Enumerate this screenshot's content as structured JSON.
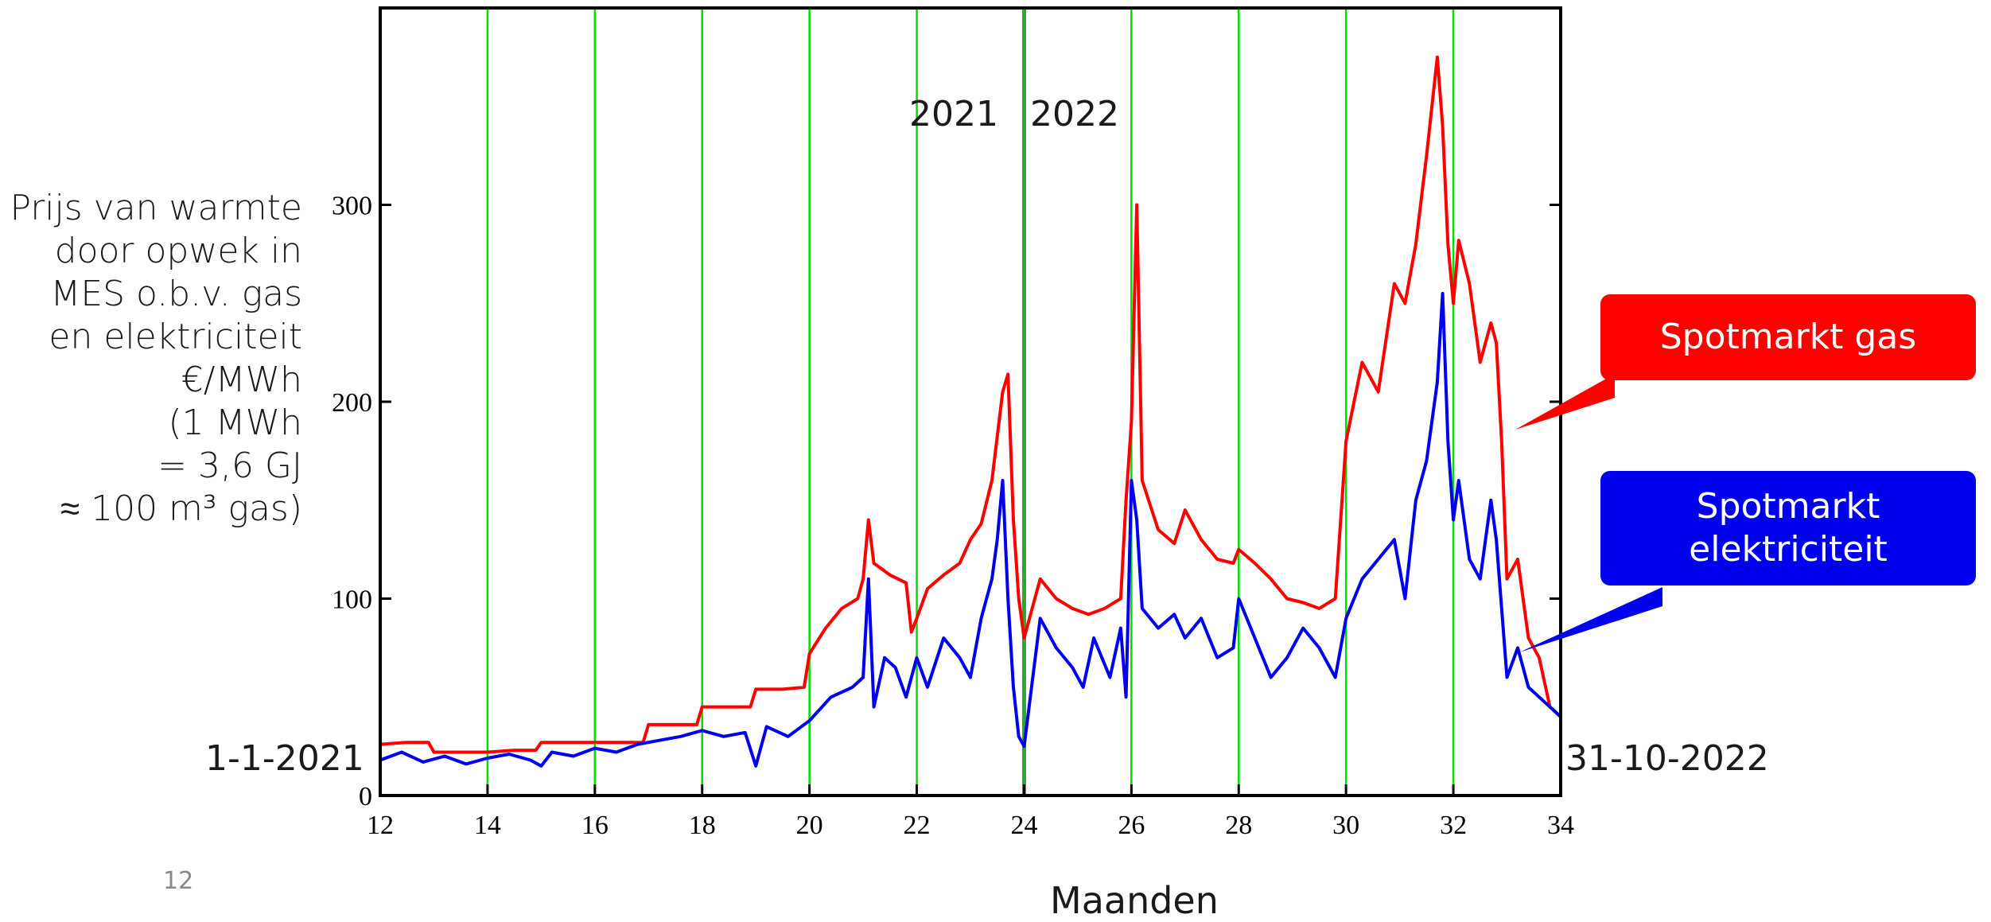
{
  "slide_number": "12",
  "colors": {
    "gas": "#ff0000",
    "elec": "#0000ee",
    "grid": "#00dd00",
    "year_divider": "#2fa72f",
    "callout_gas": "#ff0000",
    "callout_elec": "#0000ee"
  },
  "annotations": {
    "start_date": "1-1-2021",
    "end_date": "31-10-2022",
    "year_left": "2021",
    "year_right": "2022"
  },
  "callouts": {
    "gas": "Spotmarkt gas",
    "elec_line1": "Spotmarkt",
    "elec_line2": "elektriciteit"
  },
  "ylabel_lines": [
    "Prijs van warmte",
    "door opwek in",
    "MES o.b.v. gas",
    "en elektriciteit",
    "€/MWh",
    "(1 MWh",
    "= 3,6 GJ",
    "≈ 100 m³ gas)"
  ],
  "chart_data": {
    "type": "line",
    "xlabel": "Maanden",
    "ylabel": "Prijs van warmte door opwek in MES o.b.v. gas en elektriciteit €/MWh (1 MWh = 3,6 GJ ≈ 100 m³ gas)",
    "xlim": [
      12,
      34
    ],
    "ylim": [
      0,
      400
    ],
    "xticks": [
      12,
      14,
      16,
      18,
      20,
      22,
      24,
      26,
      28,
      30,
      32,
      34
    ],
    "yticks": [
      0,
      100,
      200,
      300
    ],
    "vertical_gridlines": [
      14,
      16,
      18,
      20,
      22,
      24,
      26,
      28,
      30,
      32
    ],
    "year_divider_x": 24,
    "legend": "callouts-right",
    "series": [
      {
        "name": "Spotmarkt gas",
        "color": "#ff0000",
        "x": [
          12,
          12.5,
          12.9,
          13.0,
          13.5,
          14.0,
          14.5,
          14.9,
          15.0,
          15.5,
          16.0,
          16.5,
          16.9,
          17.0,
          17.5,
          17.9,
          18.0,
          18.5,
          18.9,
          19.0,
          19.5,
          19.9,
          20.0,
          20.3,
          20.6,
          20.9,
          21.0,
          21.1,
          21.2,
          21.5,
          21.8,
          21.9,
          22.0,
          22.2,
          22.5,
          22.8,
          23.0,
          23.2,
          23.4,
          23.6,
          23.7,
          23.8,
          23.9,
          24.0,
          24.3,
          24.6,
          24.9,
          25.2,
          25.5,
          25.8,
          25.9,
          26.0,
          26.1,
          26.2,
          26.5,
          26.8,
          27.0,
          27.3,
          27.6,
          27.9,
          28.0,
          28.3,
          28.6,
          28.9,
          29.2,
          29.5,
          29.8,
          30.0,
          30.3,
          30.6,
          30.9,
          31.1,
          31.3,
          31.5,
          31.7,
          31.8,
          31.9,
          32.0,
          32.1,
          32.3,
          32.5,
          32.7,
          32.8,
          32.9,
          33.0,
          33.2,
          33.4,
          33.6,
          33.8,
          34.0
        ],
        "values": [
          26,
          27,
          27,
          22,
          22,
          22,
          23,
          23,
          27,
          27,
          27,
          27,
          27,
          36,
          36,
          36,
          45,
          45,
          45,
          54,
          54,
          55,
          72,
          85,
          95,
          100,
          110,
          140,
          118,
          112,
          108,
          83,
          90,
          105,
          112,
          118,
          130,
          138,
          160,
          205,
          214,
          140,
          100,
          80,
          110,
          100,
          95,
          92,
          95,
          100,
          150,
          190,
          300,
          160,
          135,
          128,
          145,
          130,
          120,
          118,
          125,
          118,
          110,
          100,
          98,
          95,
          100,
          180,
          220,
          205,
          260,
          250,
          280,
          325,
          375,
          340,
          280,
          250,
          282,
          260,
          220,
          240,
          230,
          180,
          110,
          120,
          80,
          70,
          45,
          40
        ]
      },
      {
        "name": "Spotmarkt elektriciteit",
        "color": "#0000ee",
        "x": [
          12,
          12.4,
          12.8,
          13.2,
          13.6,
          14.0,
          14.4,
          14.8,
          15.0,
          15.2,
          15.6,
          16.0,
          16.4,
          16.8,
          17.2,
          17.6,
          18.0,
          18.4,
          18.8,
          19.0,
          19.2,
          19.6,
          20.0,
          20.4,
          20.8,
          21.0,
          21.1,
          21.2,
          21.4,
          21.6,
          21.8,
          22.0,
          22.2,
          22.5,
          22.8,
          23.0,
          23.2,
          23.4,
          23.5,
          23.6,
          23.7,
          23.8,
          23.9,
          24.0,
          24.3,
          24.6,
          24.9,
          25.1,
          25.3,
          25.6,
          25.8,
          25.9,
          26.0,
          26.1,
          26.2,
          26.5,
          26.8,
          27.0,
          27.3,
          27.6,
          27.9,
          28.0,
          28.3,
          28.6,
          28.9,
          29.2,
          29.5,
          29.8,
          30.0,
          30.3,
          30.6,
          30.9,
          31.1,
          31.3,
          31.5,
          31.7,
          31.8,
          31.9,
          32.0,
          32.1,
          32.3,
          32.5,
          32.7,
          32.8,
          32.9,
          33.0,
          33.2,
          33.4,
          33.6,
          33.8,
          34.0
        ],
        "values": [
          18,
          22,
          17,
          20,
          16,
          19,
          21,
          18,
          15,
          22,
          20,
          24,
          22,
          26,
          28,
          30,
          33,
          30,
          32,
          15,
          35,
          30,
          38,
          50,
          55,
          60,
          110,
          45,
          70,
          65,
          50,
          70,
          55,
          80,
          70,
          60,
          90,
          110,
          130,
          160,
          100,
          55,
          30,
          25,
          90,
          75,
          65,
          55,
          80,
          60,
          85,
          50,
          160,
          140,
          95,
          85,
          92,
          80,
          90,
          70,
          75,
          100,
          80,
          60,
          70,
          85,
          75,
          60,
          90,
          110,
          120,
          130,
          100,
          150,
          170,
          210,
          255,
          180,
          140,
          160,
          120,
          110,
          150,
          130,
          95,
          60,
          75,
          55,
          50,
          45,
          40
        ]
      }
    ]
  }
}
